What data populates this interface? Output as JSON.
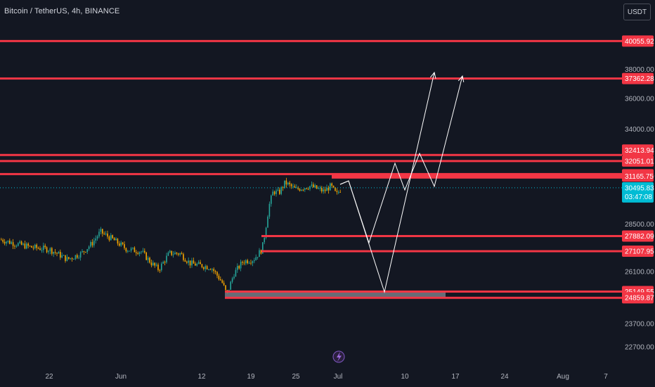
{
  "header": {
    "title": "Bitcoin / TetherUS, 4h, BINANCE",
    "currency_button": "USDT"
  },
  "colors": {
    "background": "#131722",
    "level_line": "#f23645",
    "candle_up": "#26a69a",
    "candle_down": "#f7a600",
    "price_tag": "#00bcd4",
    "axis_text": "#b2b5be",
    "drawing": "#ffffff",
    "zone": "#787b86"
  },
  "chart_data": {
    "type": "candlestick",
    "title": "Bitcoin / TetherUS, 4h, BINANCE",
    "y_axis_ticks": [
      "38000.00",
      "36000.00",
      "34000.00",
      "28500.00",
      "26100.00",
      "23700.00",
      "22700.00"
    ],
    "x_axis_ticks": [
      "22",
      "Jun",
      "12",
      "19",
      "25",
      "Jul",
      "10",
      "17",
      "24",
      "Aug",
      "7"
    ],
    "level_lines": [
      "40055.92",
      "37362.28",
      "32413.94",
      "32051.01",
      "31284.73",
      "31165.75",
      "27882.09",
      "27107.95",
      "25149.55",
      "24859.87"
    ],
    "current_price": {
      "value": "30495.83",
      "countdown": "03:47:08"
    },
    "scale": "log",
    "grid": false
  }
}
